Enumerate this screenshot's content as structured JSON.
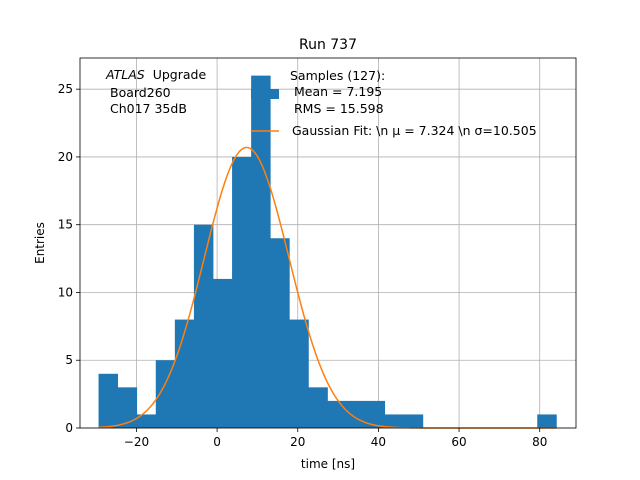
{
  "chart_data": {
    "type": "bar",
    "title": "Run 737",
    "xlabel": "time [ns]",
    "ylabel": "Entries",
    "xlim": [
      -34,
      89
    ],
    "ylim": [
      0,
      27.3
    ],
    "xticks": [
      -20,
      0,
      20,
      40,
      60,
      80
    ],
    "yticks": [
      0,
      5,
      10,
      15,
      20,
      25
    ],
    "grid": true,
    "legend_position": "top-right",
    "annotation": {
      "atlas": "ATLAS",
      "upgrade": "Upgrade",
      "board": "Board260",
      "channel": "Ch017 35dB"
    },
    "histogram": {
      "name": "Samples (127):",
      "mean_text": "Mean = 7.195",
      "rms_text": "RMS = 15.598",
      "color": "#1f77b4",
      "bin_width": 4.73,
      "bin_starts": [
        -29.4,
        -24.67,
        -19.94,
        -15.21,
        -10.48,
        -5.75,
        -1.02,
        3.71,
        8.44,
        13.17,
        17.9,
        22.63,
        27.36,
        32.09,
        36.82,
        41.55,
        46.28,
        51.01,
        55.74,
        60.47,
        65.2,
        69.93,
        74.66,
        79.39
      ],
      "counts": [
        4,
        3,
        1,
        5,
        8,
        15,
        11,
        20,
        26,
        14,
        8,
        3,
        2,
        2,
        2,
        1,
        1,
        0,
        0,
        0,
        0,
        0,
        0,
        1
      ]
    },
    "fit": {
      "label": "Gaussian Fit: \\n μ = 7.324 \\n σ=10.505",
      "mu": 7.324,
      "sigma": 10.505,
      "amplitude": 20.7,
      "x_range": [
        -29.4,
        84.1
      ],
      "color": "#ff7f0e"
    }
  }
}
